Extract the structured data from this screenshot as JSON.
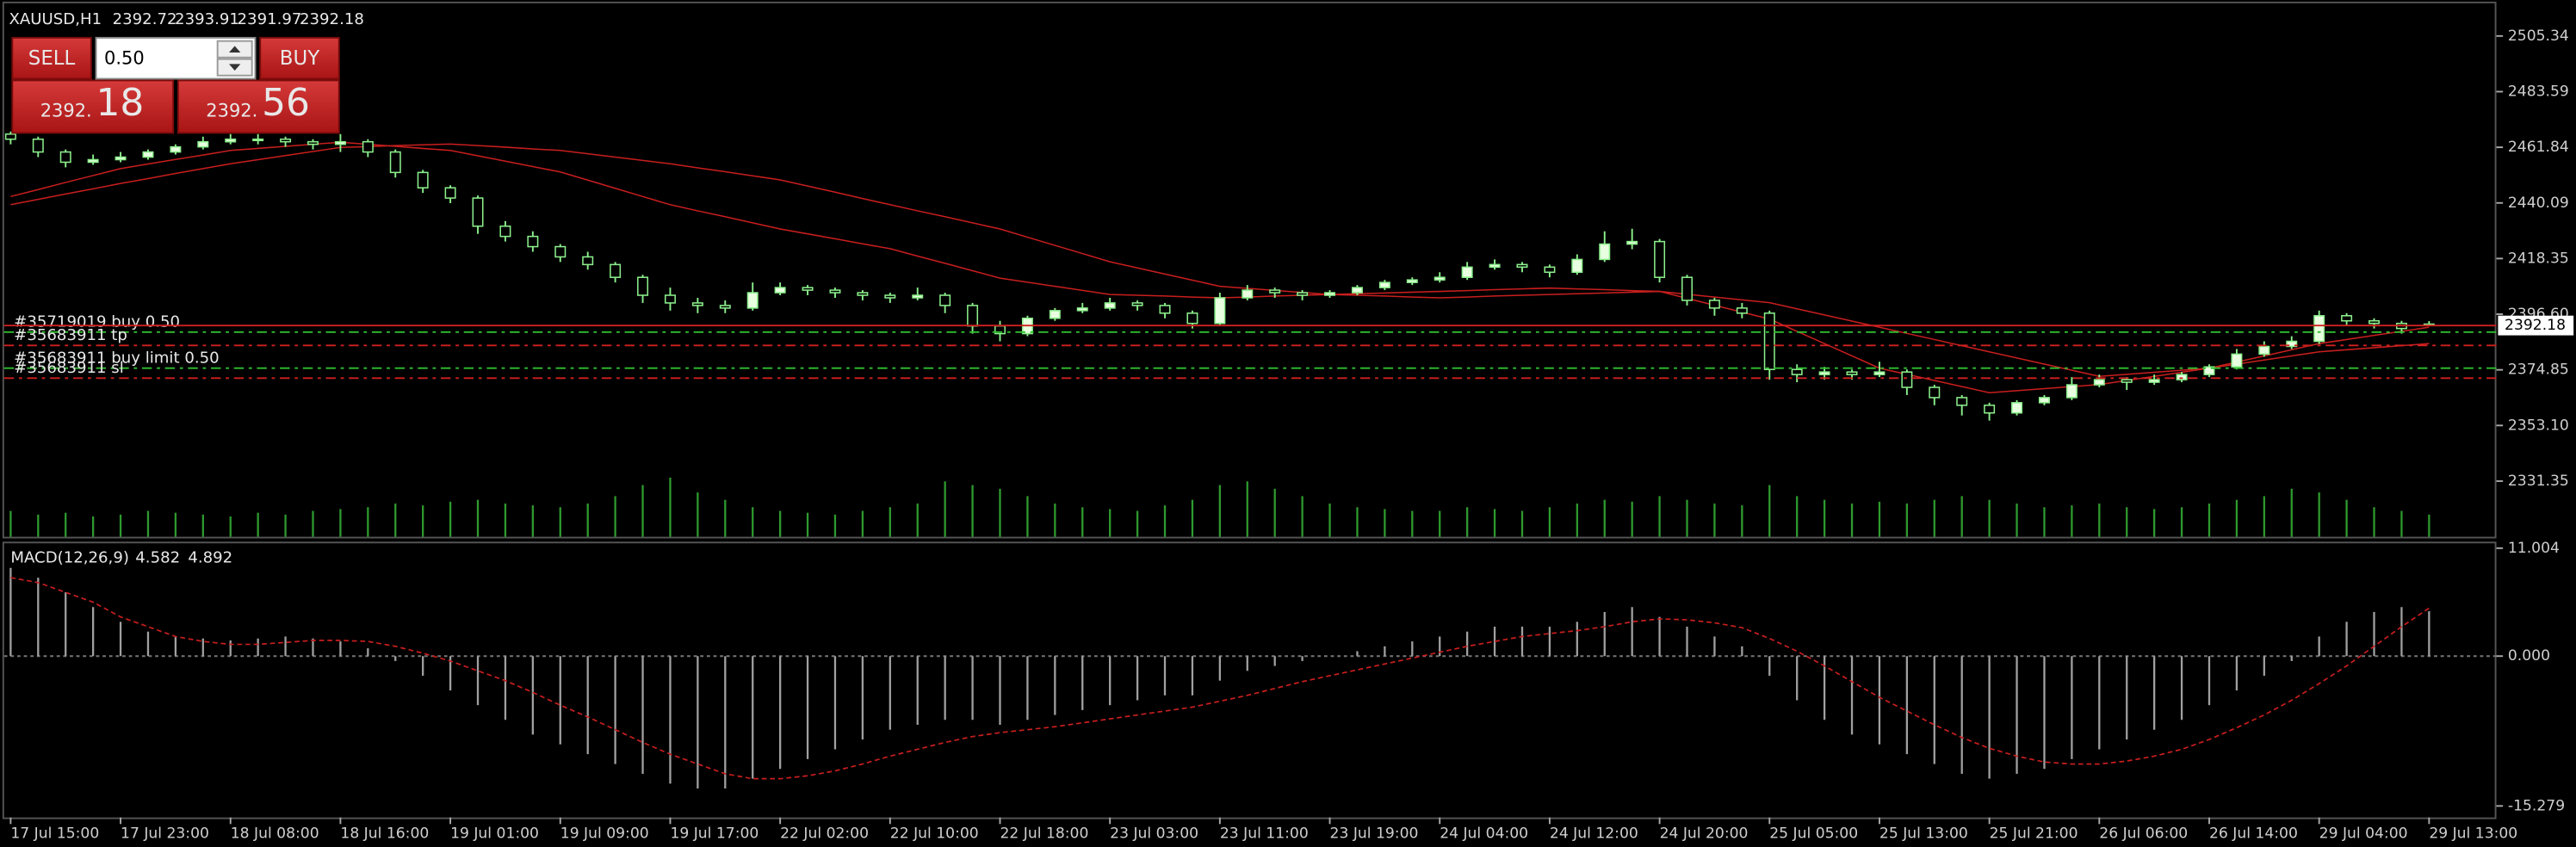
{
  "chart_data": [
    {
      "type": "candlestick",
      "symbol": "XAUUSD,H1",
      "categories": [
        "17 Jul 15:00",
        null,
        null,
        null,
        "17 Jul 23:00",
        null,
        null,
        null,
        "18 Jul 08:00",
        null,
        null,
        null,
        "18 Jul 16:00",
        null,
        null,
        null,
        "19 Jul 01:00",
        null,
        null,
        null,
        "19 Jul 09:00",
        null,
        null,
        null,
        "19 Jul 17:00",
        null,
        null,
        null,
        "22 Jul 02:00",
        null,
        null,
        null,
        "22 Jul 10:00",
        null,
        null,
        null,
        "22 Jul 18:00",
        null,
        null,
        null,
        "23 Jul 03:00",
        null,
        null,
        null,
        "23 Jul 11:00",
        null,
        null,
        null,
        "23 Jul 19:00",
        null,
        null,
        null,
        "24 Jul 04:00",
        null,
        null,
        null,
        "24 Jul 12:00",
        null,
        null,
        null,
        "24 Jul 20:00",
        null,
        null,
        null,
        "25 Jul 05:00",
        null,
        null,
        null,
        "25 Jul 13:00",
        null,
        null,
        null,
        "25 Jul 21:00",
        null,
        null,
        null,
        "26 Jul 06:00",
        null,
        null,
        null,
        "26 Jul 14:00",
        null,
        null,
        null,
        "29 Jul 04:00",
        null,
        null,
        null,
        "29 Jul 13:00"
      ],
      "ohlc": [
        [
          2467,
          2468,
          2463,
          2465
        ],
        [
          2465,
          2466,
          2458,
          2460
        ],
        [
          2460,
          2461,
          2454,
          2456
        ],
        [
          2456,
          2459,
          2455,
          2457
        ],
        [
          2457,
          2460,
          2456,
          2458
        ],
        [
          2458,
          2461,
          2457,
          2460
        ],
        [
          2460,
          2463,
          2459,
          2462
        ],
        [
          2462,
          2466,
          2461,
          2464
        ],
        [
          2464,
          2467,
          2463,
          2465
        ],
        [
          2465,
          2467,
          2463,
          2465
        ],
        [
          2465,
          2466,
          2462,
          2464
        ],
        [
          2464,
          2465,
          2461,
          2463
        ],
        [
          2463,
          2467,
          2460,
          2464
        ],
        [
          2464,
          2465,
          2458,
          2460
        ],
        [
          2460,
          2461,
          2450,
          2452
        ],
        [
          2452,
          2453,
          2444,
          2446
        ],
        [
          2446,
          2447,
          2440,
          2442
        ],
        [
          2442,
          2443,
          2428,
          2431
        ],
        [
          2431,
          2433,
          2425,
          2427
        ],
        [
          2427,
          2429,
          2421,
          2423
        ],
        [
          2423,
          2424,
          2417,
          2419
        ],
        [
          2419,
          2421,
          2414,
          2416
        ],
        [
          2416,
          2417,
          2409,
          2411
        ],
        [
          2411,
          2412,
          2401,
          2404
        ],
        [
          2404,
          2407,
          2398,
          2401
        ],
        [
          2401,
          2403,
          2397,
          2400
        ],
        [
          2400,
          2402,
          2397,
          2399
        ],
        [
          2399,
          2409,
          2398,
          2405
        ],
        [
          2405,
          2409,
          2404,
          2407
        ],
        [
          2407,
          2408,
          2404,
          2406
        ],
        [
          2406,
          2407,
          2403,
          2405
        ],
        [
          2405,
          2406,
          2402,
          2404
        ],
        [
          2404,
          2405,
          2401,
          2403
        ],
        [
          2403,
          2407,
          2402,
          2404
        ],
        [
          2404,
          2405,
          2397,
          2400
        ],
        [
          2400,
          2401,
          2389,
          2392
        ],
        [
          2392,
          2394,
          2386,
          2389
        ],
        [
          2389,
          2396,
          2388,
          2395
        ],
        [
          2395,
          2399,
          2394,
          2398
        ],
        [
          2398,
          2401,
          2397,
          2399
        ],
        [
          2399,
          2403,
          2398,
          2401
        ],
        [
          2401,
          2402,
          2398,
          2400
        ],
        [
          2400,
          2401,
          2395,
          2397
        ],
        [
          2397,
          2398,
          2391,
          2393
        ],
        [
          2393,
          2405,
          2392,
          2403
        ],
        [
          2403,
          2408,
          2402,
          2406
        ],
        [
          2406,
          2407,
          2403,
          2405
        ],
        [
          2405,
          2406,
          2402,
          2404
        ],
        [
          2404,
          2406,
          2403,
          2405
        ],
        [
          2405,
          2408,
          2404,
          2407
        ],
        [
          2407,
          2410,
          2406,
          2409
        ],
        [
          2409,
          2411,
          2408,
          2410
        ],
        [
          2410,
          2413,
          2409,
          2411
        ],
        [
          2411,
          2417,
          2410,
          2415
        ],
        [
          2415,
          2418,
          2414,
          2416
        ],
        [
          2416,
          2417,
          2413,
          2415
        ],
        [
          2415,
          2416,
          2411,
          2413
        ],
        [
          2413,
          2420,
          2412,
          2418
        ],
        [
          2418,
          2429,
          2417,
          2424
        ],
        [
          2424,
          2430,
          2422,
          2425
        ],
        [
          2425,
          2426,
          2409,
          2411
        ],
        [
          2411,
          2412,
          2400,
          2402
        ],
        [
          2402,
          2403,
          2396,
          2399
        ],
        [
          2399,
          2401,
          2395,
          2397
        ],
        [
          2397,
          2398,
          2371,
          2375
        ],
        [
          2375,
          2377,
          2370,
          2373
        ],
        [
          2373,
          2376,
          2371,
          2374
        ],
        [
          2374,
          2375,
          2371,
          2373
        ],
        [
          2373,
          2378,
          2372,
          2374
        ],
        [
          2374,
          2375,
          2365,
          2368
        ],
        [
          2368,
          2369,
          2361,
          2364
        ],
        [
          2364,
          2365,
          2357,
          2361
        ],
        [
          2361,
          2362,
          2355,
          2358
        ],
        [
          2358,
          2363,
          2357,
          2362
        ],
        [
          2362,
          2365,
          2361,
          2364
        ],
        [
          2364,
          2372,
          2363,
          2369
        ],
        [
          2369,
          2373,
          2368,
          2371
        ],
        [
          2371,
          2372,
          2367,
          2370
        ],
        [
          2370,
          2373,
          2369,
          2371
        ],
        [
          2371,
          2374,
          2370,
          2373
        ],
        [
          2373,
          2377,
          2372,
          2376
        ],
        [
          2376,
          2383,
          2375,
          2381
        ],
        [
          2381,
          2386,
          2380,
          2384
        ],
        [
          2384,
          2388,
          2383,
          2386
        ],
        [
          2386,
          2398,
          2385,
          2396
        ],
        [
          2396,
          2397,
          2392,
          2394
        ],
        [
          2394,
          2395,
          2391,
          2393
        ],
        [
          2393,
          2394,
          2389,
          2391
        ],
        [
          2392.72,
          2393.91,
          2391.97,
          2392.18
        ]
      ],
      "bull_color": "#e8ffe0",
      "bear_color": "#000000",
      "wick_color": "#8cf08c",
      "volume": [
        14,
        12,
        13,
        11,
        12,
        14,
        13,
        12,
        11,
        13,
        12,
        14,
        15,
        16,
        18,
        17,
        19,
        20,
        18,
        17,
        16,
        18,
        22,
        28,
        32,
        24,
        20,
        16,
        14,
        13,
        12,
        14,
        16,
        18,
        30,
        28,
        26,
        22,
        18,
        16,
        15,
        14,
        17,
        20,
        28,
        30,
        26,
        22,
        18,
        16,
        15,
        14,
        14,
        16,
        15,
        14,
        16,
        18,
        20,
        19,
        22,
        20,
        18,
        17,
        28,
        22,
        20,
        18,
        19,
        18,
        20,
        22,
        20,
        18,
        16,
        17,
        18,
        16,
        15,
        16,
        18,
        20,
        22,
        26,
        24,
        20,
        16,
        14,
        12
      ],
      "volume_color": "#2e9a2e",
      "series": [
        {
          "color": "#c81e1e",
          "values": [
            2442.6,
            2445.3,
            2448.1,
            2450.8,
            2453.5,
            2455.3,
            2457.1,
            2458.8,
            2460.6,
            2461.4,
            2462.2,
            2463.0,
            2463.8,
            2463.0,
            2462.2,
            2461.4,
            2460.6,
            2458.5,
            2456.4,
            2454.3,
            2452.2,
            2449.0,
            2445.8,
            2442.6,
            2439.4,
            2437.0,
            2434.7,
            2432.3,
            2429.9,
            2428.0,
            2426.1,
            2424.1,
            2422.2,
            2419.3,
            2416.5,
            2413.6,
            2410.7,
            2409.1,
            2407.5,
            2405.9,
            2404.3,
            2404.0,
            2403.7,
            2403.3,
            2403.0,
            2403.3,
            2403.7,
            2404.0,
            2404.3,
            2404.6,
            2404.9,
            2405.2,
            2405.5,
            2405.8,
            2406.2,
            2406.5,
            2406.8,
            2406.5,
            2406.2,
            2405.8,
            2405.5,
            2402.8,
            2400.1,
            2397.4,
            2394.7,
            2389.9,
            2385.1,
            2380.3,
            2375.5,
            2373.1,
            2370.7,
            2368.3,
            2365.9,
            2366.7,
            2367.5,
            2368.3,
            2369.1,
            2370.7,
            2372.3,
            2373.9,
            2375.5,
            2377.9,
            2380.3,
            2382.7,
            2385.1,
            2386.7,
            2388.3,
            2389.9,
            2391.5
          ]
        },
        {
          "color": "#c81e1e",
          "values": [
            2439.4,
            2441.5,
            2443.6,
            2445.6,
            2447.7,
            2449.6,
            2451.6,
            2453.5,
            2455.4,
            2457.0,
            2458.6,
            2460.2,
            2461.8,
            2462.1,
            2462.5,
            2462.8,
            2463.1,
            2462.5,
            2461.9,
            2461.2,
            2460.6,
            2459.3,
            2458.0,
            2456.7,
            2455.4,
            2453.8,
            2452.3,
            2450.7,
            2449.1,
            2446.7,
            2444.3,
            2441.8,
            2439.4,
            2437.0,
            2434.7,
            2432.3,
            2429.9,
            2426.7,
            2423.5,
            2420.3,
            2417.1,
            2414.7,
            2412.3,
            2409.9,
            2407.5,
            2406.7,
            2405.9,
            2405.1,
            2404.3,
            2404.0,
            2403.7,
            2403.3,
            2403.0,
            2403.3,
            2403.7,
            2404.0,
            2404.3,
            2404.6,
            2404.9,
            2405.2,
            2405.5,
            2404.4,
            2403.3,
            2402.2,
            2401.1,
            2398.7,
            2396.3,
            2393.9,
            2391.5,
            2389.1,
            2386.7,
            2384.3,
            2381.9,
            2379.5,
            2377.1,
            2374.7,
            2372.3,
            2373.1,
            2373.9,
            2374.7,
            2375.5,
            2377.1,
            2378.7,
            2380.3,
            2381.9,
            2382.7,
            2383.5,
            2384.3,
            2385.1
          ]
        }
      ],
      "orders": [
        {
          "label": "#35719019 buy 0.50",
          "price": 2389.6,
          "color": "#2fbf2f"
        },
        {
          "label": "#35683911 tp",
          "price": 2384.4,
          "color": "#d02020"
        },
        {
          "label": "#35683911 buy limit 0.50",
          "price": 2375.5,
          "color": "#2fbf2f"
        },
        {
          "label": "#35683911 sl",
          "price": 2371.6,
          "color": "#d02020"
        }
      ],
      "bid_color": "#d02020",
      "ylim": [
        2309.6,
        2518.13
      ],
      "yticks": [
        {
          "value": 2331.35,
          "label": "2331.35"
        },
        {
          "value": 2353.1,
          "label": "2353.10"
        },
        2374.85,
        {
          "value": 2396.6,
          "label": "2396.60"
        },
        2418.35,
        2440.09,
        2461.84,
        2483.59,
        2505.34
      ]
    },
    {
      "type": "macd",
      "title": "MACD(12,26,9)",
      "values": [
        9,
        8,
        6.5,
        5,
        3.5,
        2.5,
        2,
        1.8,
        1.6,
        1.8,
        2,
        1.8,
        1.5,
        0.8,
        -0.5,
        -2,
        -3.5,
        -5,
        -6.5,
        -8,
        -9,
        -10,
        -11,
        -12,
        -13,
        -13.5,
        -13.5,
        -12.5,
        -11.5,
        -10.5,
        -9.5,
        -8.5,
        -7.5,
        -7,
        -6.5,
        -6.5,
        -7,
        -6.5,
        -6,
        -5.5,
        -5,
        -4.5,
        -4,
        -4,
        -2.5,
        -1.5,
        -1,
        -0.5,
        0,
        0.5,
        1,
        1.5,
        2,
        2.5,
        3,
        3,
        3,
        3.5,
        4.5,
        5,
        4,
        3,
        2,
        1,
        -2,
        -4.5,
        -6.5,
        -8,
        -9,
        -10,
        -11,
        -12,
        -12.5,
        -12,
        -11.5,
        -10.5,
        -9.5,
        -8.5,
        -7.5,
        -6.5,
        -5,
        -3.5,
        -2,
        -0.5,
        2,
        3.5,
        4.5,
        5,
        4.582
      ],
      "color": "#a0a0a0",
      "signal": [
        8,
        7.5,
        6.5,
        5.5,
        4,
        3,
        2,
        1.5,
        1.2,
        1.2,
        1.4,
        1.6,
        1.6,
        1.5,
        1,
        0.3,
        -0.5,
        -1.5,
        -2.5,
        -3.7,
        -5,
        -6.2,
        -7.5,
        -8.8,
        -10,
        -11,
        -12,
        -12.5,
        -12.5,
        -12.2,
        -11.7,
        -11,
        -10.2,
        -9.5,
        -8.8,
        -8.2,
        -7.8,
        -7.5,
        -7.2,
        -6.8,
        -6.4,
        -6,
        -5.6,
        -5.2,
        -4.6,
        -4,
        -3.3,
        -2.6,
        -2,
        -1.4,
        -0.8,
        -0.2,
        0.4,
        1,
        1.5,
        2,
        2.3,
        2.6,
        3,
        3.5,
        3.8,
        3.7,
        3.4,
        2.9,
        1.8,
        0.5,
        -1,
        -2.6,
        -4.2,
        -5.6,
        -7,
        -8.3,
        -9.4,
        -10.2,
        -10.8,
        -11,
        -11,
        -10.7,
        -10.2,
        -9.5,
        -8.5,
        -7.3,
        -6,
        -4.5,
        -2.8,
        -1,
        1,
        3,
        4.892
      ],
      "signal_color": "#c81e1e",
      "ylim": [
        -16.45,
        11.5
      ],
      "yticks": [
        -15.279,
        {
          "value": 0,
          "label": "0.000"
        },
        11.004
      ]
    }
  ],
  "trade_panel": {
    "sell": "SELL",
    "buy": "BUY",
    "lot": "0.50",
    "sell_big": "2392.",
    "sell_pips": "18",
    "buy_big": "2392.",
    "buy_pips": "56"
  }
}
